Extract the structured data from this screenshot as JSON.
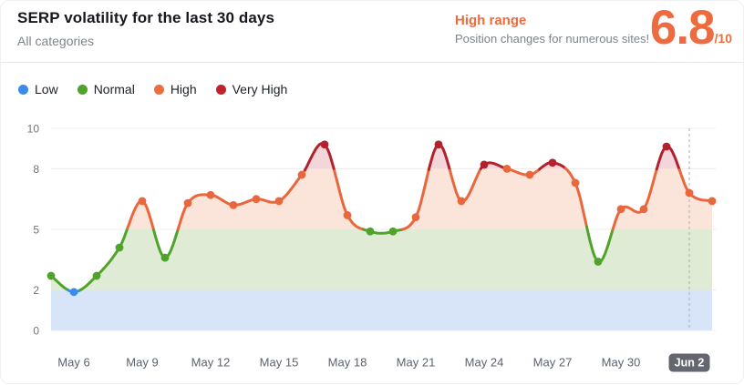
{
  "header": {
    "title": "SERP volatility for the last 30 days",
    "subtitle": "All categories",
    "range_label": "High range",
    "range_description": "Position changes for numerous sites!",
    "score": "6.8",
    "score_max": "/10"
  },
  "colors": {
    "accent_orange": "#ed6b3f",
    "grid_line": "#ececef",
    "axis_label": "#6e7580",
    "x_label": "#5a6270",
    "dashed_marker": "#a9aeb8",
    "badge_background": "#64676f",
    "badge_text": "#ffffff"
  },
  "legend": [
    {
      "label": "Low",
      "color": "#3d8be8"
    },
    {
      "label": "Normal",
      "color": "#4fa32a"
    },
    {
      "label": "High",
      "color": "#ee6e3d"
    },
    {
      "label": "Very High",
      "color": "#c1202c"
    }
  ],
  "chart_data": {
    "type": "line",
    "title": "SERP volatility for the last 30 days",
    "xlabel": "",
    "ylabel": "",
    "ylim": [
      0,
      10
    ],
    "yticks": [
      0,
      2,
      5,
      8,
      10
    ],
    "grid": true,
    "legend_position": "top",
    "x": [
      "May 5",
      "May 6",
      "May 7",
      "May 8",
      "May 9",
      "May 10",
      "May 11",
      "May 12",
      "May 13",
      "May 14",
      "May 15",
      "May 16",
      "May 17",
      "May 18",
      "May 19",
      "May 20",
      "May 21",
      "May 22",
      "May 23",
      "May 24",
      "May 25",
      "May 26",
      "May 27",
      "May 28",
      "May 29",
      "May 30",
      "May 31",
      "Jun 1",
      "Jun 2",
      "Jun 3"
    ],
    "values": [
      2.7,
      1.9,
      2.7,
      4.1,
      6.4,
      3.6,
      6.3,
      6.7,
      6.2,
      6.5,
      6.4,
      7.7,
      9.2,
      5.7,
      4.9,
      4.9,
      5.6,
      9.2,
      6.4,
      8.2,
      8.0,
      7.7,
      8.3,
      7.3,
      3.4,
      6.0,
      6.0,
      9.1,
      6.8,
      6.4
    ],
    "xticks": [
      "May 6",
      "May 9",
      "May 12",
      "May 15",
      "May 18",
      "May 21",
      "May 24",
      "May 27",
      "May 30",
      "Jun 2"
    ],
    "highlighted_xtick": "Jun 2",
    "dashed_line_x": "Jun 2",
    "bands": [
      {
        "name": "Low",
        "from": 0,
        "to": 2,
        "line_color": "#3d8be8",
        "fill_color": "#d8e5f8"
      },
      {
        "name": "Normal",
        "from": 2,
        "to": 5,
        "line_color": "#4fa32a",
        "fill_color": "#dfebd4"
      },
      {
        "name": "High",
        "from": 5,
        "to": 8,
        "line_color": "#e8673c",
        "fill_color": "#fbe4da"
      },
      {
        "name": "Very High",
        "from": 8,
        "to": 10,
        "line_color": "#b3202e",
        "fill_color": "#f2d6da"
      }
    ]
  }
}
